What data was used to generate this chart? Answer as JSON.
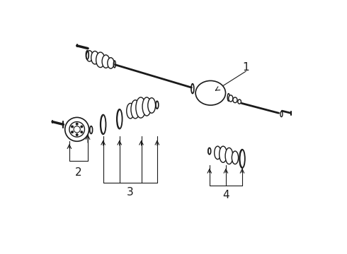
{
  "background_color": "#ffffff",
  "line_color": "#1a1a1a",
  "lw": 1.0,
  "label_fontsize": 10,
  "labels": [
    "1",
    "2",
    "3",
    "4"
  ],
  "fig_width": 4.9,
  "fig_height": 3.6,
  "dpi": 100
}
